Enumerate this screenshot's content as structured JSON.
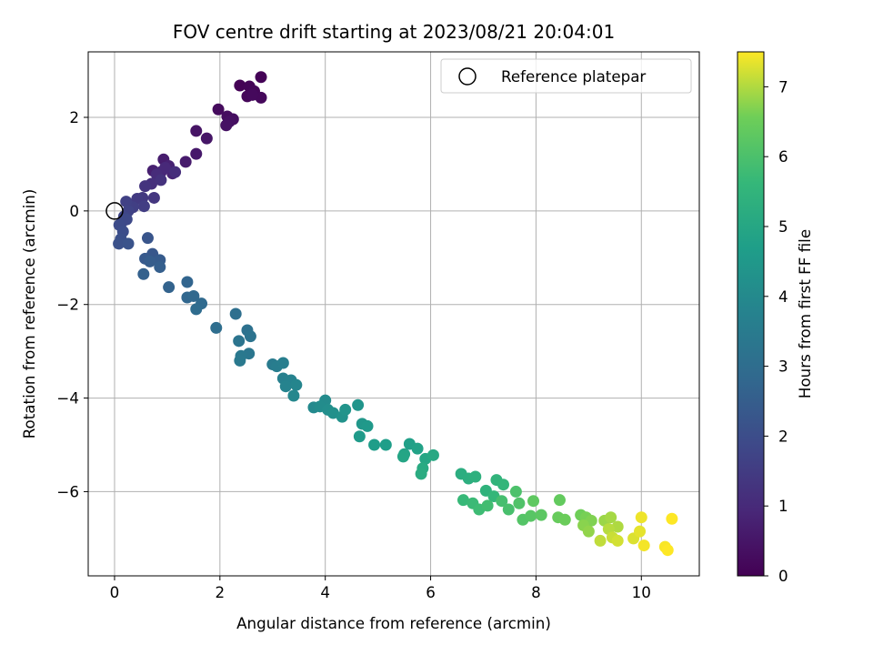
{
  "chart_data": {
    "type": "scatter",
    "title": "FOV centre drift starting at 2023/08/21 20:04:01",
    "xlabel": "Angular distance from reference (arcmin)",
    "ylabel": "Rotation from reference (arcmin)",
    "colorbar_label": "Hours from first FF file",
    "xlim": [
      -0.5,
      11.1
    ],
    "ylim": [
      -7.8,
      3.4
    ],
    "clim": [
      0,
      7.5
    ],
    "x_ticks": [
      0,
      2,
      4,
      6,
      8,
      10
    ],
    "y_ticks": [
      -6,
      -4,
      -2,
      0,
      2
    ],
    "c_ticks": [
      0,
      1,
      2,
      3,
      4,
      5,
      6,
      7
    ],
    "x_tick_labels": [
      "0",
      "2",
      "4",
      "6",
      "8",
      "10"
    ],
    "y_tick_labels": [
      "−6",
      "−4",
      "−2",
      "0",
      "2"
    ],
    "c_tick_labels": [
      "0",
      "1",
      "2",
      "3",
      "4",
      "5",
      "6",
      "7"
    ],
    "grid": true,
    "colormap": "viridis",
    "legend": {
      "location": "upper right",
      "entries": [
        {
          "label": "Reference platepar",
          "marker": "open-circle"
        }
      ]
    },
    "reference_point": {
      "x": 0,
      "y": 0
    },
    "points": [
      {
        "x": 2.38,
        "y": 2.68,
        "c": 0.02
      },
      {
        "x": 2.78,
        "y": 2.86,
        "c": 0.05
      },
      {
        "x": 2.56,
        "y": 2.66,
        "c": 0.08
      },
      {
        "x": 2.65,
        "y": 2.56,
        "c": 0.11
      },
      {
        "x": 2.52,
        "y": 2.45,
        "c": 0.14
      },
      {
        "x": 2.78,
        "y": 2.42,
        "c": 0.17
      },
      {
        "x": 2.62,
        "y": 2.48,
        "c": 0.2
      },
      {
        "x": 1.97,
        "y": 2.17,
        "c": 0.24
      },
      {
        "x": 2.14,
        "y": 2.02,
        "c": 0.28
      },
      {
        "x": 2.25,
        "y": 1.96,
        "c": 0.32
      },
      {
        "x": 2.18,
        "y": 1.91,
        "c": 0.36
      },
      {
        "x": 2.12,
        "y": 1.83,
        "c": 0.4
      },
      {
        "x": 1.55,
        "y": 1.71,
        "c": 0.45
      },
      {
        "x": 1.75,
        "y": 1.55,
        "c": 0.5
      },
      {
        "x": 1.55,
        "y": 1.22,
        "c": 0.56
      },
      {
        "x": 1.35,
        "y": 1.05,
        "c": 0.62
      },
      {
        "x": 0.93,
        "y": 1.1,
        "c": 0.68
      },
      {
        "x": 0.73,
        "y": 0.86,
        "c": 0.74
      },
      {
        "x": 1.03,
        "y": 0.96,
        "c": 0.8
      },
      {
        "x": 1.1,
        "y": 0.8,
        "c": 0.86
      },
      {
        "x": 0.88,
        "y": 0.83,
        "c": 0.92
      },
      {
        "x": 0.96,
        "y": 0.92,
        "c": 0.98
      },
      {
        "x": 0.8,
        "y": 0.78,
        "c": 1.04
      },
      {
        "x": 1.15,
        "y": 0.83,
        "c": 1.1
      },
      {
        "x": 0.7,
        "y": 0.58,
        "c": 1.16
      },
      {
        "x": 0.88,
        "y": 0.66,
        "c": 1.22
      },
      {
        "x": 0.58,
        "y": 0.53,
        "c": 1.28
      },
      {
        "x": 0.75,
        "y": 0.28,
        "c": 1.34
      },
      {
        "x": 0.53,
        "y": 0.28,
        "c": 1.4
      },
      {
        "x": 0.43,
        "y": 0.26,
        "c": 1.46
      },
      {
        "x": 0.56,
        "y": 0.1,
        "c": 1.52
      },
      {
        "x": 0.35,
        "y": 0.08,
        "c": 1.58
      },
      {
        "x": 0.22,
        "y": 0.2,
        "c": 1.64
      },
      {
        "x": 0.26,
        "y": 0.0,
        "c": 1.7
      },
      {
        "x": 0.18,
        "y": -0.12,
        "c": 1.76
      },
      {
        "x": 0.14,
        "y": -0.24,
        "c": 1.82
      },
      {
        "x": 0.23,
        "y": -0.18,
        "c": 1.88
      },
      {
        "x": 0.09,
        "y": -0.3,
        "c": 1.94
      },
      {
        "x": 0.16,
        "y": -0.44,
        "c": 2.0
      },
      {
        "x": 0.12,
        "y": -0.6,
        "c": 2.06
      },
      {
        "x": 0.08,
        "y": -0.7,
        "c": 2.12
      },
      {
        "x": 0.26,
        "y": -0.7,
        "c": 2.18
      },
      {
        "x": 0.63,
        "y": -0.58,
        "c": 2.24
      },
      {
        "x": 0.72,
        "y": -0.92,
        "c": 2.3
      },
      {
        "x": 0.58,
        "y": -1.02,
        "c": 2.36
      },
      {
        "x": 0.86,
        "y": -1.05,
        "c": 2.42
      },
      {
        "x": 0.67,
        "y": -1.08,
        "c": 2.48
      },
      {
        "x": 0.86,
        "y": -1.2,
        "c": 2.54
      },
      {
        "x": 0.55,
        "y": -1.35,
        "c": 2.6
      },
      {
        "x": 1.03,
        "y": -1.63,
        "c": 2.66
      },
      {
        "x": 1.38,
        "y": -1.52,
        "c": 2.72
      },
      {
        "x": 1.38,
        "y": -1.85,
        "c": 2.78
      },
      {
        "x": 1.5,
        "y": -1.82,
        "c": 2.84
      },
      {
        "x": 1.65,
        "y": -1.98,
        "c": 2.9
      },
      {
        "x": 1.55,
        "y": -2.1,
        "c": 2.96
      },
      {
        "x": 1.93,
        "y": -2.5,
        "c": 3.02
      },
      {
        "x": 2.3,
        "y": -2.2,
        "c": 3.08
      },
      {
        "x": 2.52,
        "y": -2.55,
        "c": 3.14
      },
      {
        "x": 2.58,
        "y": -2.68,
        "c": 3.2
      },
      {
        "x": 2.36,
        "y": -2.78,
        "c": 3.26
      },
      {
        "x": 2.55,
        "y": -3.05,
        "c": 3.32
      },
      {
        "x": 2.4,
        "y": -3.1,
        "c": 3.38
      },
      {
        "x": 2.38,
        "y": -3.2,
        "c": 3.44
      },
      {
        "x": 3.0,
        "y": -3.28,
        "c": 3.5
      },
      {
        "x": 3.08,
        "y": -3.32,
        "c": 3.56
      },
      {
        "x": 3.2,
        "y": -3.25,
        "c": 3.62
      },
      {
        "x": 3.2,
        "y": -3.58,
        "c": 3.68
      },
      {
        "x": 3.35,
        "y": -3.62,
        "c": 3.74
      },
      {
        "x": 3.25,
        "y": -3.75,
        "c": 3.8
      },
      {
        "x": 3.45,
        "y": -3.72,
        "c": 3.86
      },
      {
        "x": 3.4,
        "y": -3.95,
        "c": 3.92
      },
      {
        "x": 3.78,
        "y": -4.2,
        "c": 3.98
      },
      {
        "x": 4.0,
        "y": -4.05,
        "c": 4.04
      },
      {
        "x": 3.9,
        "y": -4.18,
        "c": 4.1
      },
      {
        "x": 4.05,
        "y": -4.25,
        "c": 4.16
      },
      {
        "x": 4.15,
        "y": -4.32,
        "c": 4.22
      },
      {
        "x": 4.32,
        "y": -4.4,
        "c": 4.28
      },
      {
        "x": 4.38,
        "y": -4.25,
        "c": 4.34
      },
      {
        "x": 4.62,
        "y": -4.15,
        "c": 4.4
      },
      {
        "x": 4.7,
        "y": -4.55,
        "c": 4.46
      },
      {
        "x": 4.8,
        "y": -4.6,
        "c": 4.52
      },
      {
        "x": 4.65,
        "y": -4.82,
        "c": 4.58
      },
      {
        "x": 4.93,
        "y": -5.0,
        "c": 4.64
      },
      {
        "x": 5.15,
        "y": -5.0,
        "c": 4.7
      },
      {
        "x": 5.6,
        "y": -4.98,
        "c": 4.76
      },
      {
        "x": 5.75,
        "y": -5.08,
        "c": 4.82
      },
      {
        "x": 5.5,
        "y": -5.2,
        "c": 4.88
      },
      {
        "x": 5.48,
        "y": -5.25,
        "c": 4.94
      },
      {
        "x": 5.9,
        "y": -5.3,
        "c": 5.0
      },
      {
        "x": 6.05,
        "y": -5.22,
        "c": 5.06
      },
      {
        "x": 5.85,
        "y": -5.5,
        "c": 5.12
      },
      {
        "x": 5.82,
        "y": -5.62,
        "c": 5.18
      },
      {
        "x": 6.58,
        "y": -5.62,
        "c": 5.24
      },
      {
        "x": 6.72,
        "y": -5.72,
        "c": 5.3
      },
      {
        "x": 6.85,
        "y": -5.68,
        "c": 5.36
      },
      {
        "x": 7.05,
        "y": -5.98,
        "c": 5.42
      },
      {
        "x": 7.25,
        "y": -5.75,
        "c": 5.48
      },
      {
        "x": 7.38,
        "y": -5.85,
        "c": 5.54
      },
      {
        "x": 7.2,
        "y": -6.1,
        "c": 5.6
      },
      {
        "x": 6.62,
        "y": -6.18,
        "c": 5.66
      },
      {
        "x": 6.8,
        "y": -6.25,
        "c": 5.72
      },
      {
        "x": 6.92,
        "y": -6.38,
        "c": 5.78
      },
      {
        "x": 7.08,
        "y": -6.3,
        "c": 5.84
      },
      {
        "x": 7.35,
        "y": -6.2,
        "c": 5.9
      },
      {
        "x": 7.48,
        "y": -6.38,
        "c": 5.96
      },
      {
        "x": 7.62,
        "y": -6.0,
        "c": 6.02
      },
      {
        "x": 7.68,
        "y": -6.25,
        "c": 6.08
      },
      {
        "x": 7.75,
        "y": -6.6,
        "c": 6.14
      },
      {
        "x": 7.9,
        "y": -6.52,
        "c": 6.2
      },
      {
        "x": 8.1,
        "y": -6.5,
        "c": 6.26
      },
      {
        "x": 7.95,
        "y": -6.2,
        "c": 6.32
      },
      {
        "x": 8.45,
        "y": -6.18,
        "c": 6.38
      },
      {
        "x": 8.42,
        "y": -6.55,
        "c": 6.44
      },
      {
        "x": 8.55,
        "y": -6.6,
        "c": 6.5
      },
      {
        "x": 8.85,
        "y": -6.5,
        "c": 6.56
      },
      {
        "x": 8.95,
        "y": -6.55,
        "c": 6.62
      },
      {
        "x": 9.05,
        "y": -6.62,
        "c": 6.68
      },
      {
        "x": 8.9,
        "y": -6.72,
        "c": 6.74
      },
      {
        "x": 9.0,
        "y": -6.85,
        "c": 6.8
      },
      {
        "x": 9.3,
        "y": -6.62,
        "c": 6.86
      },
      {
        "x": 9.42,
        "y": -6.55,
        "c": 6.92
      },
      {
        "x": 9.55,
        "y": -6.75,
        "c": 6.98
      },
      {
        "x": 9.38,
        "y": -6.8,
        "c": 7.04
      },
      {
        "x": 9.22,
        "y": -7.05,
        "c": 7.1
      },
      {
        "x": 9.45,
        "y": -6.98,
        "c": 7.16
      },
      {
        "x": 9.55,
        "y": -7.05,
        "c": 7.22
      },
      {
        "x": 9.85,
        "y": -7.0,
        "c": 7.28
      },
      {
        "x": 9.97,
        "y": -6.85,
        "c": 7.34
      },
      {
        "x": 10.0,
        "y": -6.55,
        "c": 7.4
      },
      {
        "x": 10.05,
        "y": -7.15,
        "c": 7.44
      },
      {
        "x": 10.45,
        "y": -7.18,
        "c": 7.47
      },
      {
        "x": 10.5,
        "y": -7.25,
        "c": 7.5
      },
      {
        "x": 10.58,
        "y": -6.58,
        "c": 7.5
      }
    ]
  }
}
